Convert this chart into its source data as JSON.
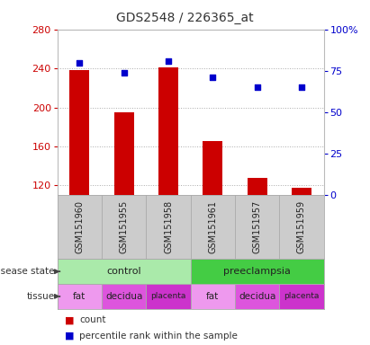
{
  "title": "GDS2548 / 226365_at",
  "samples": [
    "GSM151960",
    "GSM151955",
    "GSM151958",
    "GSM151961",
    "GSM151957",
    "GSM151959"
  ],
  "counts": [
    238,
    195,
    241,
    166,
    128,
    118
  ],
  "percentile_ranks": [
    80,
    74,
    81,
    71,
    65,
    65
  ],
  "ylim_left": [
    110,
    280
  ],
  "ylim_right": [
    0,
    100
  ],
  "yticks_left": [
    120,
    160,
    200,
    240,
    280
  ],
  "yticks_right": [
    0,
    25,
    50,
    75,
    100
  ],
  "bar_color": "#cc0000",
  "scatter_color": "#0000cc",
  "bar_width": 0.45,
  "disease_state": [
    {
      "label": "control",
      "span": [
        0,
        3
      ],
      "color": "#aaeaaa"
    },
    {
      "label": "preeclampsia",
      "span": [
        3,
        6
      ],
      "color": "#44cc44"
    }
  ],
  "tissue_items": [
    {
      "label": "fat",
      "span": [
        0,
        1
      ]
    },
    {
      "label": "decidua",
      "span": [
        1,
        2
      ]
    },
    {
      "label": "placenta",
      "span": [
        2,
        3
      ]
    },
    {
      "label": "fat",
      "span": [
        3,
        4
      ]
    },
    {
      "label": "decidua",
      "span": [
        4,
        5
      ]
    },
    {
      "label": "placenta",
      "span": [
        5,
        6
      ]
    }
  ],
  "tissue_colors": {
    "fat": "#ee99ee",
    "decidua": "#dd55dd",
    "placenta": "#cc33cc"
  },
  "left_axis_color": "#cc0000",
  "right_axis_color": "#0000cc",
  "grid_color": "#aaaaaa",
  "bg_color": "#ffffff",
  "sample_bg_color": "#cccccc",
  "sample_border_color": "#aaaaaa"
}
